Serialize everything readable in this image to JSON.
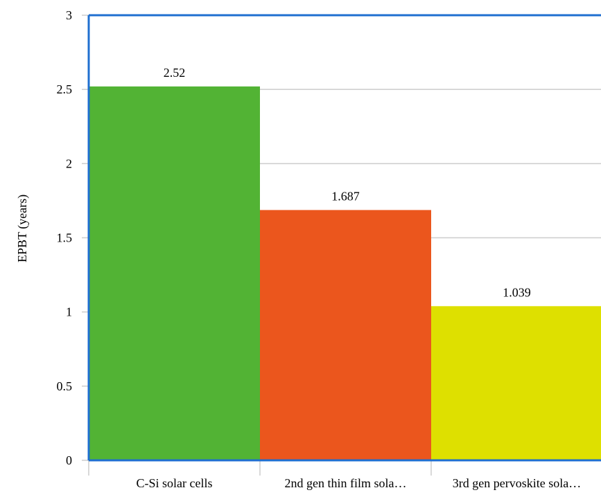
{
  "chart_data": {
    "type": "bar",
    "categories": [
      "C-Si solar cells",
      "2nd gen thin film sola…",
      "3rd gen pervoskite sola…"
    ],
    "values": [
      2.52,
      1.687,
      1.039
    ],
    "value_labels": [
      "2.52",
      "1.687",
      "1.039"
    ],
    "title": "",
    "xlabel": "",
    "ylabel": "EPBT (years)",
    "ylim": [
      0,
      3
    ],
    "yticks": [
      0,
      0.5,
      1,
      1.5,
      2,
      2.5,
      3
    ],
    "ytick_labels": [
      "0",
      "0.5",
      "1",
      "1.5",
      "2",
      "2.5",
      "3"
    ],
    "grid": true,
    "legend": "none",
    "colors": {
      "bars": [
        "#52b334",
        "#eb561d",
        "#dee000"
      ],
      "axis": "#1f6fd0",
      "grid": "#cccccc"
    }
  }
}
